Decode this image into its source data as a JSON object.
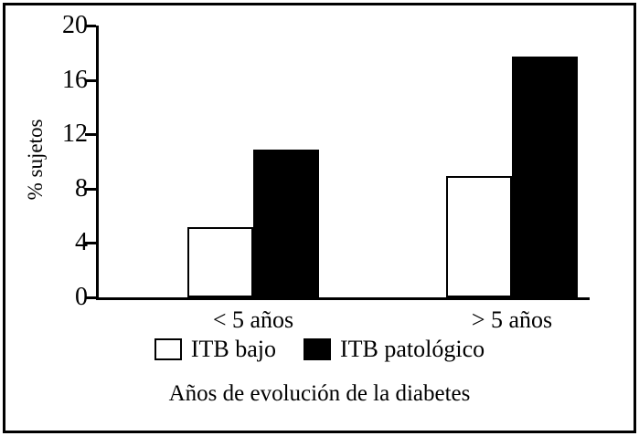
{
  "chart_data": {
    "type": "bar",
    "title": "",
    "xlabel": "Años de evolución de la diabetes",
    "ylabel": "% sujetos",
    "categories": [
      "< 5 años",
      "> 5 años"
    ],
    "series": [
      {
        "name": "ITB bajo",
        "color": "#ffffff",
        "values": [
          5.2,
          8.9
        ]
      },
      {
        "name": "ITB patológico",
        "color": "#000000",
        "values": [
          10.9,
          17.7
        ]
      }
    ],
    "ylim": [
      0,
      20
    ],
    "yticks": [
      0,
      4,
      8,
      12,
      16,
      20
    ],
    "grid": false,
    "legend_position": "bottom"
  }
}
